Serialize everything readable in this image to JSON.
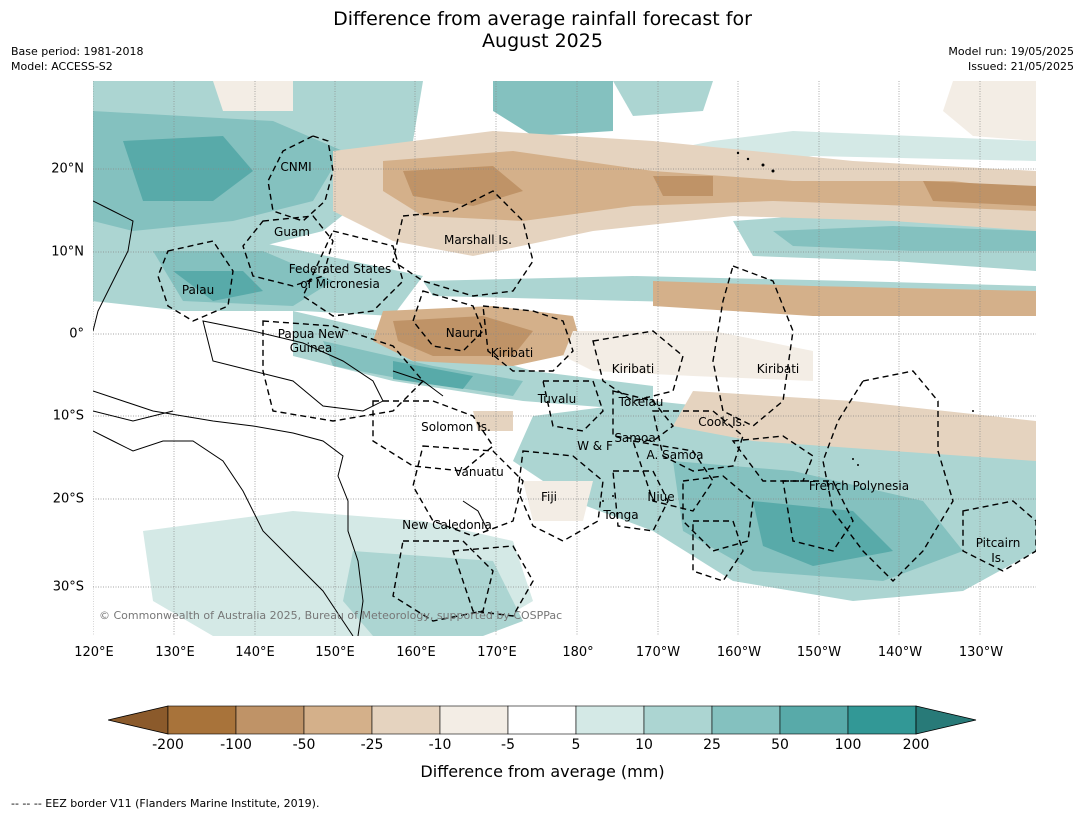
{
  "header": {
    "title_line1": "Difference from average rainfall forecast for",
    "title_line2": "August 2025",
    "base_period": "Base period: 1981-2018",
    "model": "Model: ACCESS-S2",
    "model_run": "Model run: 19/05/2025",
    "issued": "Issued: 21/05/2025"
  },
  "map": {
    "lat_labels": [
      "20°N",
      "10°N",
      "0°",
      "10°S",
      "20°S",
      "30°S"
    ],
    "lon_labels": [
      "120°E",
      "130°E",
      "140°E",
      "150°E",
      "160°E",
      "170°E",
      "180°",
      "170°W",
      "160°W",
      "150°W",
      "140°W",
      "130°W"
    ],
    "regions": [
      "CNMI",
      "Guam",
      "Marshall Is.",
      "Federated States",
      "of Micronesia",
      "Palau",
      "Nauru",
      "Papua New",
      "Guinea",
      "Kiribati",
      "Kiribati",
      "Kiribati",
      "Tuvalu",
      "Tokelau",
      "Cook Is.",
      "Solomon Is.",
      "W & F",
      "Samoa",
      "A. Samoa",
      "Vanuatu",
      "Fiji",
      "Niue",
      "French Polynesia",
      "Tonga",
      "New Caledonia",
      "Pitcairn",
      "Is."
    ],
    "copyright": "© Commonwealth of Australia 2025, Bureau of Meteorology, supported by COSPPac"
  },
  "colorbar": {
    "ticks": [
      "-200",
      "-100",
      "-50",
      "-25",
      "-10",
      "-5",
      "5",
      "10",
      "25",
      "50",
      "100",
      "200"
    ],
    "colors": [
      "#8b5a2b",
      "#a8733a",
      "#bf9367",
      "#d4b08a",
      "#e5d3bf",
      "#f3ede5",
      "#ffffff",
      "#d4e9e6",
      "#acd5d2",
      "#84c1bf",
      "#58aaa9",
      "#329896",
      "#287a78"
    ],
    "label": "Difference from average (mm)"
  },
  "footnote": "--  --  -- EEZ border V11 (Flanders Marine Institute, 2019)."
}
